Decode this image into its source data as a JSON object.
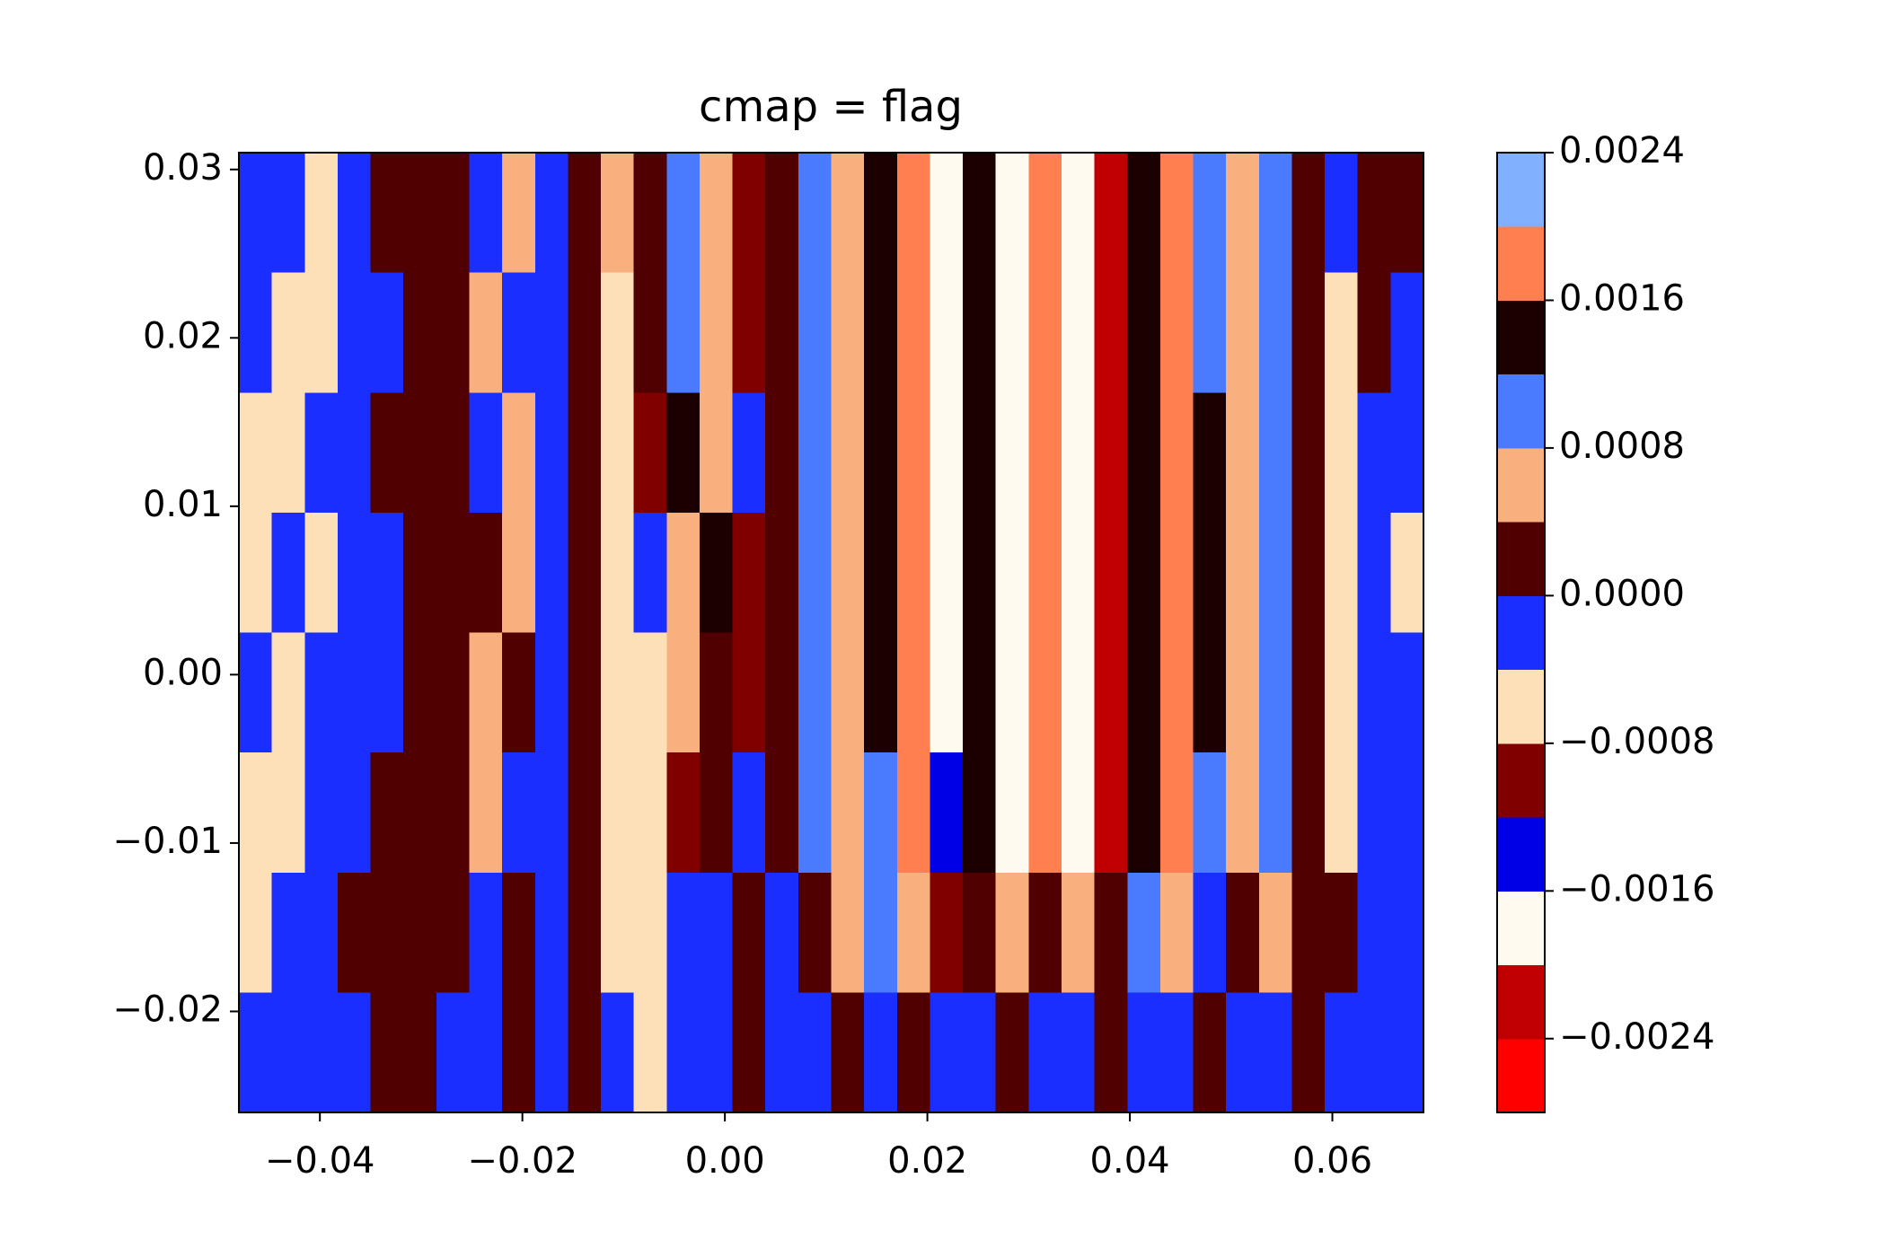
{
  "chart_data": {
    "type": "contourf",
    "title": "cmap = flag",
    "xlim": [
      -0.048,
      0.069
    ],
    "ylim": [
      -0.026,
      0.031
    ],
    "xticks": [
      {
        "value": -0.04,
        "label": "−0.04"
      },
      {
        "value": -0.02,
        "label": "−0.02"
      },
      {
        "value": 0,
        "label": "0.00"
      },
      0.02,
      0.04,
      0.06
    ],
    "yticks": [
      {
        "value": -0.02,
        "label": "−0.02"
      },
      {
        "value": -0.01,
        "label": "−0.01"
      },
      {
        "value": 0,
        "label": "0.00"
      },
      0.01,
      0.02,
      0.03
    ],
    "levels": [
      -0.0028,
      -0.0024,
      -0.002,
      -0.0016,
      -0.0012,
      -0.0008,
      -0.0004,
      0,
      0.0004,
      0.0008,
      0.0012,
      0.0016,
      0.002,
      0.0024
    ],
    "colors": [
      "#ff0000",
      "#c00000",
      "#fffaf0",
      "#0000e6",
      "#800000",
      "#fde0b8",
      "#1a2eff",
      "#500000",
      "#f8b07f",
      "#4a7bff",
      "#1a0000",
      "#ff7f50",
      "#80b0ff"
    ],
    "colorbar_ticks": [
      {
        "value": -0.0024,
        "label": "−0.0024"
      },
      {
        "value": -0.0016,
        "label": "−0.0016"
      },
      {
        "value": -0.0008,
        "label": "−0.0008"
      },
      {
        "value": 0,
        "label": "0.0000"
      },
      0.0008,
      0.0016,
      0.0024
    ],
    "z": [
      [
        -0.0002,
        -0.0002,
        -0.0006,
        -0.0002,
        0.0002,
        0.0002,
        0.0002,
        -0.0002,
        0.0006,
        -0.0002,
        0.0002,
        0.0006,
        0.0002,
        0.001,
        0.0006,
        -0.001,
        0.0002,
        0.001,
        0.0006,
        0.0014,
        0.0018,
        -0.0018,
        0.0014,
        -0.0018,
        0.0018,
        -0.0018,
        -0.0022,
        0.0014,
        0.0018,
        0.001,
        0.0006,
        0.001,
        0.0002,
        -0.0002,
        0.0002,
        0.0002
      ],
      [
        -0.0002,
        -0.0006,
        -0.0006,
        -0.0002,
        -0.0002,
        0.0002,
        0.0002,
        0.0006,
        -0.0002,
        -0.0002,
        0.0002,
        -0.0006,
        0.0002,
        0.001,
        0.0006,
        -0.001,
        0.0002,
        0.001,
        0.0006,
        0.0014,
        0.0018,
        -0.0018,
        0.0014,
        -0.0018,
        0.0018,
        -0.0018,
        -0.0022,
        0.0014,
        0.0018,
        0.001,
        0.0006,
        0.001,
        0.0002,
        -0.0006,
        0.0002,
        -0.0002
      ],
      [
        -0.0006,
        -0.0006,
        -0.0002,
        -0.0002,
        0.0002,
        0.0002,
        0.0002,
        -0.0002,
        0.0006,
        -0.0002,
        0.0002,
        -0.0006,
        -0.001,
        0.0014,
        0.0006,
        -0.0002,
        0.0002,
        0.001,
        0.0006,
        0.0014,
        0.0018,
        -0.0018,
        0.0014,
        -0.0018,
        0.0018,
        -0.0018,
        -0.0022,
        0.0014,
        0.0018,
        0.0014,
        0.0006,
        0.001,
        0.0002,
        -0.0006,
        -0.0002,
        -0.0002
      ],
      [
        -0.0006,
        -0.0002,
        -0.0006,
        -0.0002,
        -0.0002,
        0.0002,
        0.0002,
        0.0002,
        0.0006,
        -0.0002,
        0.0002,
        -0.0006,
        -0.0002,
        0.0006,
        0.0014,
        -0.001,
        0.0002,
        0.001,
        0.0006,
        0.0014,
        0.0018,
        -0.0018,
        0.0014,
        -0.0018,
        0.0018,
        -0.0018,
        -0.0022,
        0.0014,
        0.0018,
        0.0014,
        0.0006,
        0.001,
        0.0002,
        -0.0006,
        -0.0002,
        -0.0006
      ],
      [
        -0.0002,
        -0.0006,
        -0.0002,
        -0.0002,
        -0.0002,
        0.0002,
        0.0002,
        0.0006,
        0.0002,
        -0.0002,
        0.0002,
        -0.0006,
        -0.0006,
        0.0006,
        0.0002,
        -0.001,
        0.0002,
        0.001,
        0.0006,
        0.0014,
        0.0018,
        -0.0018,
        0.0014,
        -0.0018,
        0.0018,
        -0.0018,
        -0.0022,
        0.0014,
        0.0018,
        0.0014,
        0.0006,
        0.001,
        0.0002,
        -0.0006,
        -0.0002,
        -0.0002
      ],
      [
        -0.0006,
        -0.0006,
        -0.0002,
        -0.0002,
        0.0002,
        0.0002,
        0.0002,
        0.0006,
        -0.0002,
        -0.0002,
        0.0002,
        -0.0006,
        -0.0006,
        -0.001,
        0.0002,
        -0.0002,
        0.0002,
        0.001,
        0.0006,
        0.001,
        0.0018,
        -0.0014,
        0.0014,
        -0.0018,
        0.0018,
        -0.0018,
        -0.0022,
        0.0014,
        0.0018,
        0.001,
        0.0006,
        0.001,
        0.0002,
        -0.0006,
        -0.0002,
        -0.0002
      ],
      [
        -0.0006,
        -0.0002,
        -0.0002,
        0.0002,
        0.0002,
        0.0002,
        0.0002,
        -0.0002,
        0.0002,
        -0.0002,
        0.0002,
        -0.0006,
        -0.0006,
        -0.0002,
        -0.0002,
        0.0002,
        -0.0002,
        0.0002,
        0.0006,
        0.001,
        0.0006,
        -0.001,
        0.0002,
        0.0006,
        0.0002,
        0.0006,
        0.0002,
        0.001,
        0.0006,
        -0.0002,
        0.0002,
        0.0006,
        0.0002,
        0.0002,
        -0.0002,
        -0.0002
      ],
      [
        -0.0002,
        -0.0002,
        -0.0002,
        -0.0002,
        0.0002,
        0.0002,
        -0.0002,
        -0.0002,
        0.0002,
        -0.0002,
        0.0002,
        -0.0002,
        -0.0006,
        -0.0002,
        -0.0002,
        0.0002,
        -0.0002,
        -0.0002,
        0.0002,
        -0.0002,
        0.0002,
        -0.0002,
        -0.0002,
        0.0002,
        -0.0002,
        -0.0002,
        0.0002,
        -0.0002,
        -0.0002,
        0.0002,
        -0.0002,
        -0.0002,
        0.0002,
        -0.0002,
        -0.0002,
        -0.0002
      ]
    ]
  }
}
